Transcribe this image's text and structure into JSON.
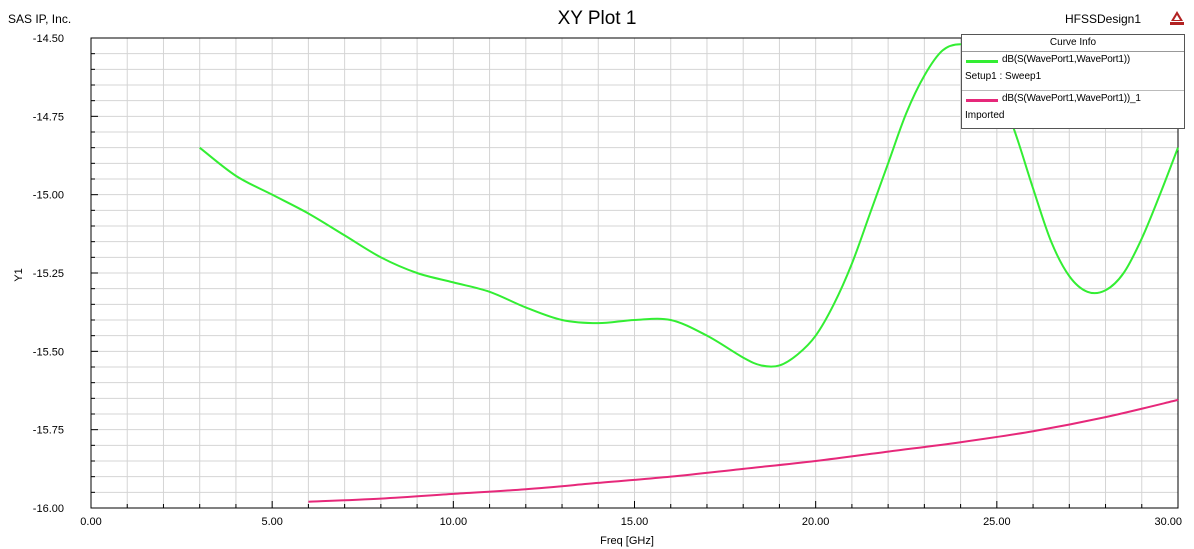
{
  "header": {
    "company": "SAS IP, Inc.",
    "design": "HFSSDesign1",
    "logo_text": "ANSOFT"
  },
  "chart_data": {
    "type": "line",
    "title": "XY Plot 1",
    "xlabel": "Freq [GHz]",
    "ylabel": "Y1",
    "xlim": [
      0,
      30
    ],
    "ylim": [
      -16.0,
      -14.5
    ],
    "x_ticks": [
      "0.00",
      "5.00",
      "10.00",
      "15.00",
      "20.00",
      "25.00",
      "30.00"
    ],
    "y_ticks": [
      "-14.50",
      "-14.75",
      "-15.00",
      "-15.25",
      "-15.50",
      "-15.75",
      "-16.00"
    ],
    "grid": true,
    "legend_position": "top-right",
    "legend_title": "Curve Info",
    "series": [
      {
        "name": "dB(S(WavePort1,WavePort1))",
        "sub": "Setup1 : Sweep1",
        "color": "#33ee33",
        "x": [
          3.0,
          4.0,
          5.0,
          6.0,
          7.0,
          8.0,
          9.0,
          10.0,
          11.0,
          12.0,
          13.0,
          14.0,
          15.0,
          16.0,
          17.0,
          18.0,
          18.5,
          19.0,
          19.5,
          20.0,
          20.5,
          21.0,
          21.5,
          22.0,
          22.5,
          23.0,
          23.5,
          24.0,
          24.5,
          25.0,
          25.5,
          26.0,
          26.5,
          27.0,
          27.5,
          28.0,
          28.5,
          29.0,
          29.5,
          30.0
        ],
        "y": [
          -14.85,
          -14.94,
          -15.0,
          -15.06,
          -15.13,
          -15.2,
          -15.25,
          -15.28,
          -15.31,
          -15.36,
          -15.4,
          -15.41,
          -15.4,
          -15.4,
          -15.45,
          -15.52,
          -15.545,
          -15.545,
          -15.51,
          -15.45,
          -15.35,
          -15.22,
          -15.06,
          -14.9,
          -14.74,
          -14.62,
          -14.54,
          -14.52,
          -14.54,
          -14.65,
          -14.8,
          -14.98,
          -15.15,
          -15.26,
          -15.31,
          -15.305,
          -15.25,
          -15.14,
          -15.0,
          -14.85
        ]
      },
      {
        "name": "dB(S(WavePort1,WavePort1))_1",
        "sub": "Imported",
        "color": "#e6287a",
        "x": [
          6.0,
          8.0,
          10.0,
          12.0,
          14.0,
          16.0,
          18.0,
          20.0,
          22.0,
          24.0,
          26.0,
          28.0,
          30.0
        ],
        "y": [
          -15.98,
          -15.97,
          -15.955,
          -15.94,
          -15.92,
          -15.9,
          -15.875,
          -15.85,
          -15.82,
          -15.79,
          -15.755,
          -15.71,
          -15.655
        ]
      }
    ]
  }
}
